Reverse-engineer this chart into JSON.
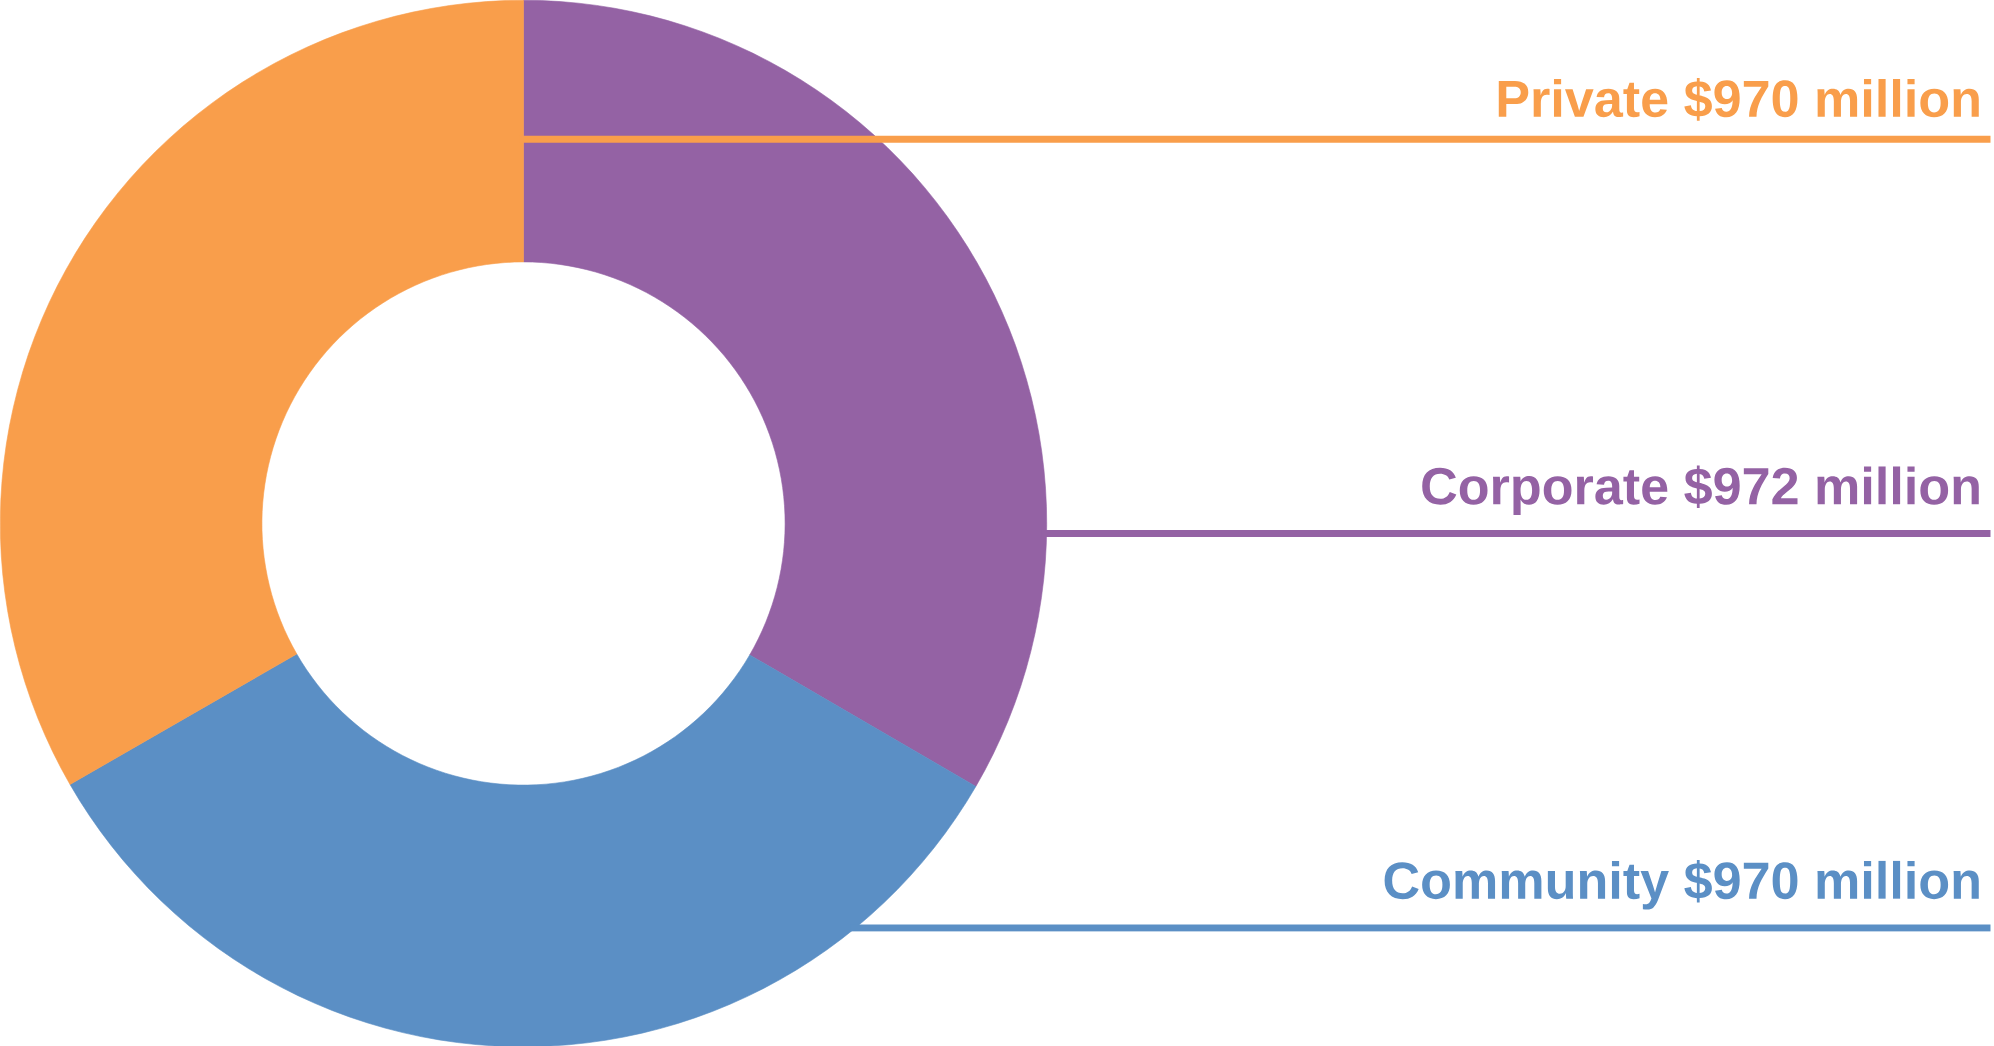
{
  "chart_data": {
    "type": "donut",
    "categories": [
      "Corporate",
      "Community",
      "Private"
    ],
    "values": [
      972,
      970,
      970
    ],
    "value_labels": [
      "$972 million",
      "$970 million",
      "$970 million"
    ],
    "colors": [
      "#9462a4",
      "#5b8fc5",
      "#f99e4b"
    ]
  }
}
